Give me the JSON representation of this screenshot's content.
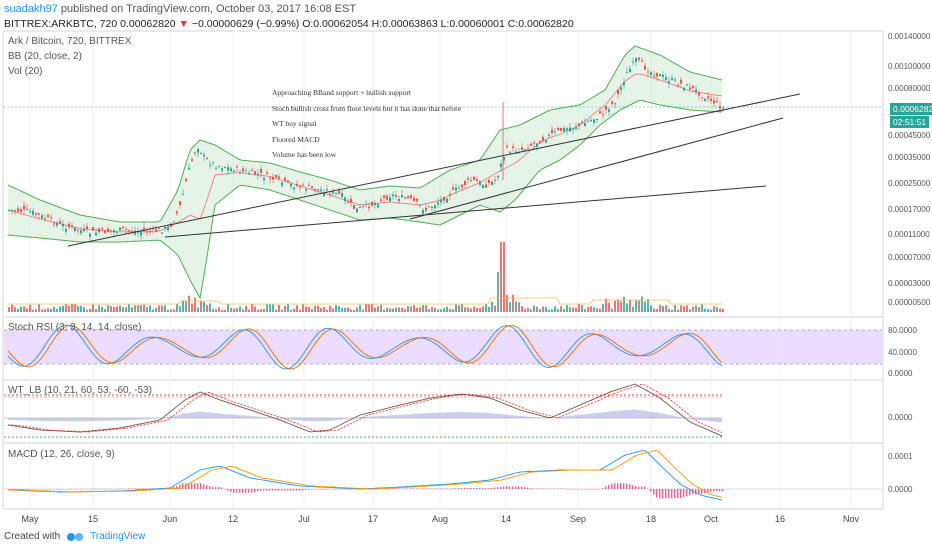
{
  "header": {
    "user": "suadakh97",
    "published": " published on TradingView.com, October 03, 2017 16:08 EST",
    "symbol": "BITTREX:ARKBTC, 720",
    "price": "0.00062820",
    "change_arrow": "▼",
    "change": "−0.00000629 (−0.99%)",
    "ohlc": "O:0.00062054 H:0.00063863 L:0.00060001 C:0.00062820"
  },
  "main_pane": {
    "title": "Ark / Bitcoin, 720, BITTREX",
    "bb_label": "BB (20, close, 2)",
    "vol_label": "Vol (20)",
    "price_badge": "0.00062820",
    "time_badge": "02:51:51",
    "y_labels": [
      "0.00140000",
      "0.00100000",
      "0.00080000",
      "0.00045000",
      "0.00035000",
      "0.00025000",
      "0.00017000",
      "0.00011000",
      "0.00007000",
      "0.00003000",
      "0.00000500"
    ]
  },
  "annotations": [
    "Approaching BBand support + bullish support",
    "Stoch bullish cross from floor levels but it has done that before",
    "WT buy signal",
    "Floored MACD",
    "Volume has been low"
  ],
  "stoch": {
    "label": "Stoch RSI (3, 3, 14, 14, close)",
    "y_labels": [
      "80.0000",
      "40.0000",
      "0.0000"
    ]
  },
  "wt": {
    "label": "WT_LB (10, 21, 60, 53, -60, -53)",
    "y_labels": [
      "0.0000"
    ]
  },
  "macd": {
    "label": "MACD (12, 26, close, 9)",
    "y_labels": [
      "0.0001",
      "0.0000"
    ]
  },
  "x_axis": [
    "May",
    "15",
    "Jun",
    "12",
    "Jul",
    "17",
    "Aug",
    "14",
    "Sep",
    "18",
    "Oct",
    "16",
    "Nov"
  ],
  "footer": {
    "created": "Created with",
    "brand": "TradingView"
  },
  "colors": {
    "bull": "#26a69a",
    "bear": "#ef5350",
    "bb": "#4caf50",
    "stoch_fill": "#e6d5ff",
    "wt_red": "#ef5350",
    "wt_green": "#4caf50",
    "macd_blue": "#2196f3",
    "macd_orange": "#ff9800"
  }
}
